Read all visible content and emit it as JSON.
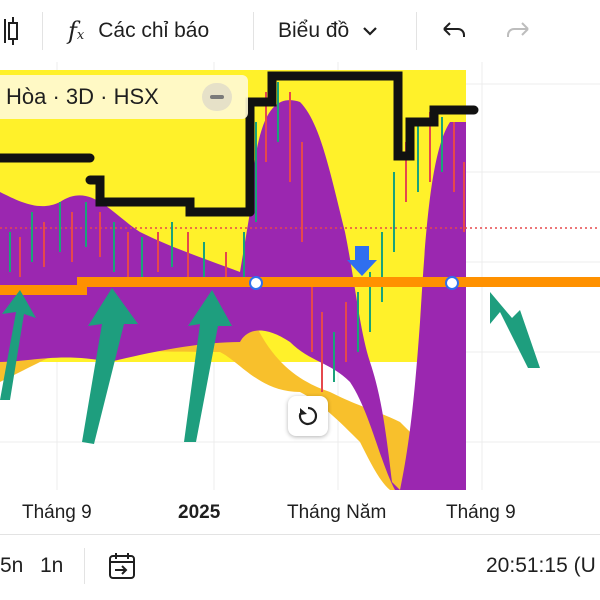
{
  "toolbar": {
    "indicators_icon": "function-icon",
    "indicators_label": "Các chỉ báo",
    "chart_type_label": "Biểu đồ",
    "chart_type_icon": "chevron-down-icon",
    "undo_icon": "undo-icon",
    "redo_icon": "redo-icon"
  },
  "legend": {
    "symbol_text": "Hòa · 3D · HSX",
    "collapse_icon": "minus-icon"
  },
  "axis": {
    "labels": [
      "Tháng 9",
      "2025",
      "Tháng Năm",
      "Tháng 9"
    ]
  },
  "bottom": {
    "range_1": "5n",
    "range_2": "1n",
    "date_range_icon": "calendar-arrow-icon",
    "clock_text": "20:51:15 (U"
  },
  "colors": {
    "yellow_band": "#fff12a",
    "purple_cloud": "#9b27b0",
    "orange_cloud": "#f8c02c",
    "orange_line": "#ff9100",
    "black_line": "#111111",
    "arrow_green": "#1e9e7e",
    "arrow_blue": "#2f6fef",
    "candle_up": "#1aa37a",
    "candle_down": "#e5484d"
  },
  "reset_icon": "reset-rotate-icon"
}
